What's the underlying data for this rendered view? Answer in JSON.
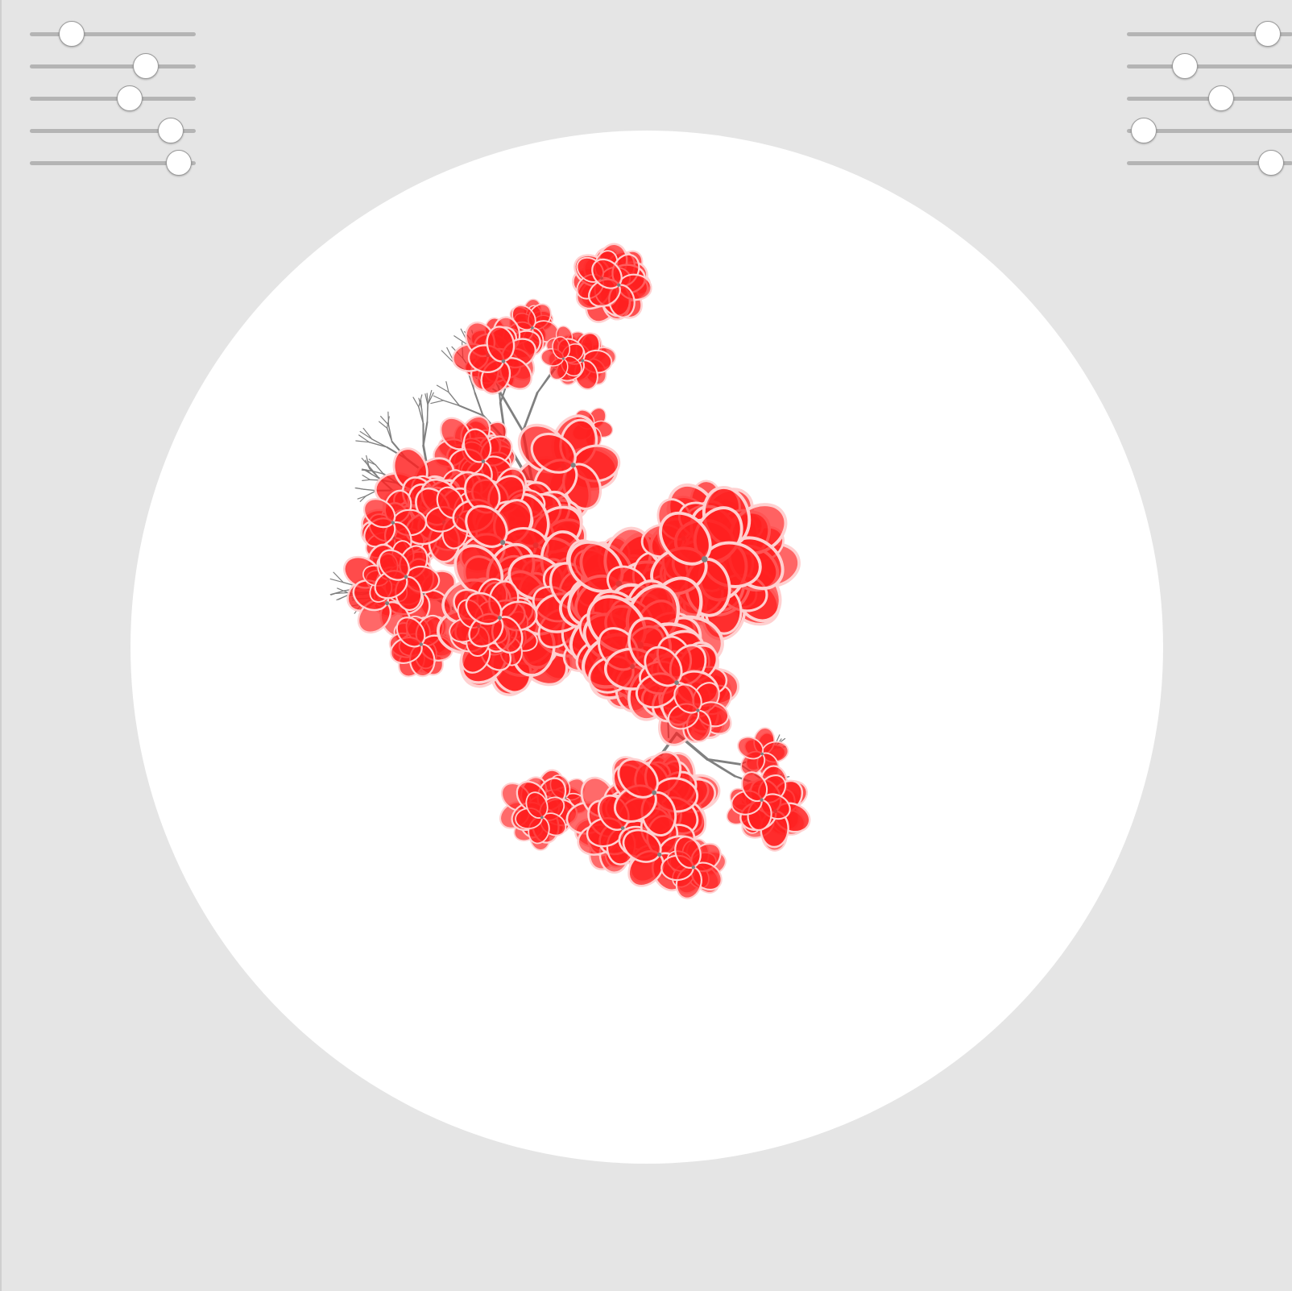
{
  "controls": {
    "left_sliders": [
      {
        "id": "param-1",
        "value": 0.25
      },
      {
        "id": "param-2",
        "value": 0.7
      },
      {
        "id": "param-3",
        "value": 0.6
      },
      {
        "id": "param-4",
        "value": 0.85
      },
      {
        "id": "param-5",
        "value": 0.9
      }
    ],
    "right_sliders": [
      {
        "id": "param-6",
        "value": 0.85
      },
      {
        "id": "param-7",
        "value": 0.35
      },
      {
        "id": "param-8",
        "value": 0.57
      },
      {
        "id": "param-9",
        "value": 0.1
      },
      {
        "id": "param-10",
        "value": 0.87
      }
    ]
  },
  "canvas": {
    "background": "#ffffff",
    "page_background": "#e5e5e5",
    "branch_color": "#808080",
    "blossom_color": "#ff2020",
    "blossom_edge_color": "#ffd0d0"
  }
}
